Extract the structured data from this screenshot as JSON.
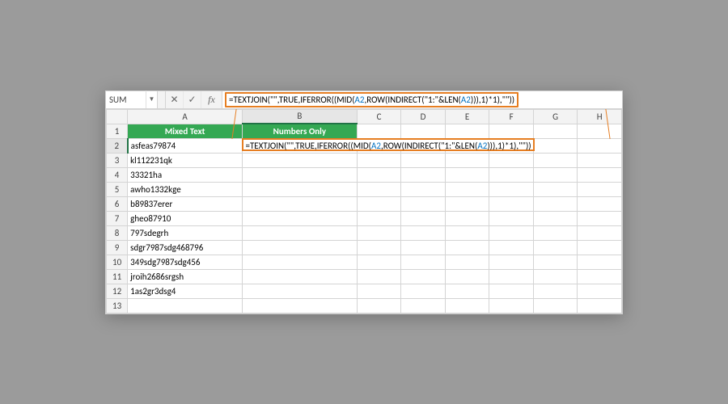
{
  "nameBox": "SUM",
  "formula": {
    "prefix": "=TEXTJOIN(\"\",TRUE,IFERROR((MID(",
    "ref1": "A2",
    "mid1": ",ROW(INDIRECT(\"1:\"&LEN(",
    "ref2": "A2",
    "suffix": "))),1)*1),\"\"))"
  },
  "columns": [
    "A",
    "B",
    "C",
    "D",
    "E",
    "F",
    "G",
    "H"
  ],
  "headerRow": {
    "a": "Mixed Text",
    "b": "Numbers Only"
  },
  "rows": [
    {
      "n": 1
    },
    {
      "n": 2,
      "a": "asfeas79874"
    },
    {
      "n": 3,
      "a": "kl112231qk"
    },
    {
      "n": 4,
      "a": "33321ha"
    },
    {
      "n": 5,
      "a": "awho1332kge"
    },
    {
      "n": 6,
      "a": "b89837erer"
    },
    {
      "n": 7,
      "a": "gheo87910"
    },
    {
      "n": 8,
      "a": "797sdegrh"
    },
    {
      "n": 9,
      "a": "sdgr7987sdg468796"
    },
    {
      "n": 10,
      "a": "349sdg7987sdg456"
    },
    {
      "n": 11,
      "a": "jroih2686srgsh"
    },
    {
      "n": 12,
      "a": "1as2gr3dsg4"
    },
    {
      "n": 13
    }
  ],
  "colors": {
    "pageBg": "#9b9b9b",
    "headerGreen": "#34a853",
    "highlight": "#e67e22",
    "gridBorder": "#d4d4d4",
    "chromeBg": "#f3f3f3",
    "refColor": "#0070c0"
  },
  "icons": {
    "cancel": "✕",
    "enter": "✓",
    "fx": "fx",
    "dropdown": "▼"
  }
}
